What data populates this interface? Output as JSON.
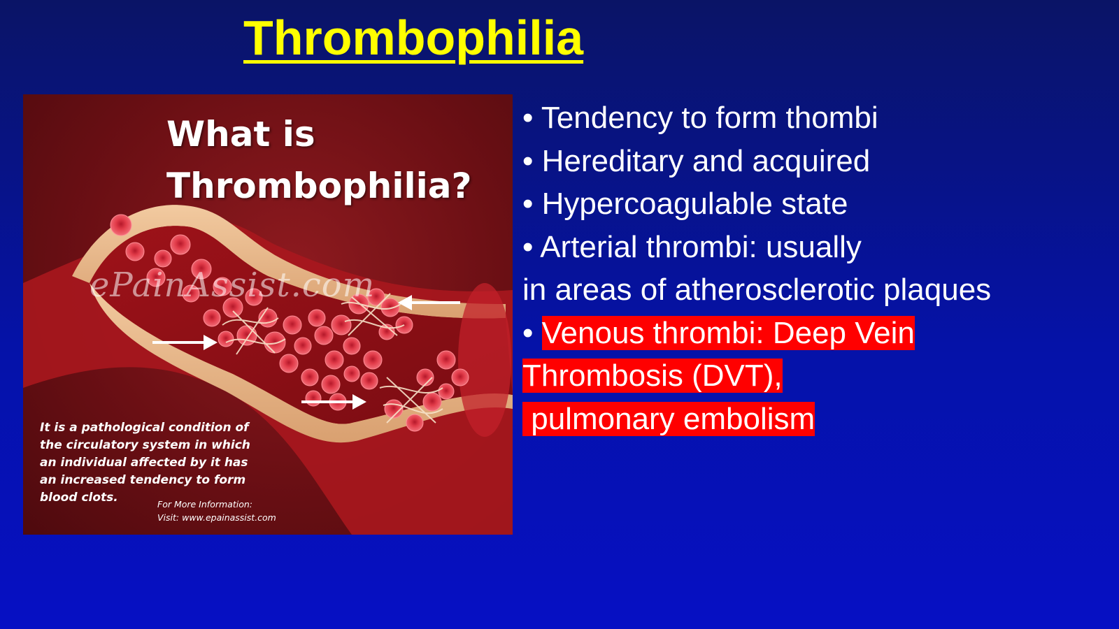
{
  "slide": {
    "title": "Thrombophilia"
  },
  "illustration": {
    "heading_line1": "What is",
    "heading_line2": "Thrombophilia?",
    "watermark": "ePainAssist.com",
    "caption_lines": [
      "It is a pathological condition of",
      "the circulatory system in which",
      "an individual affected by it has",
      "an increased tendency to form",
      "blood clots."
    ],
    "info_line1": "For More Information:",
    "info_line2": "Visit: www.epainassist.com",
    "colors": {
      "background": "#6b0f14",
      "vessel_wall": "#e8b88a",
      "blood_cell": "#e8424e"
    }
  },
  "bullets": {
    "items": [
      "• Tendency to form thombi",
      "• Hereditary and acquired",
      "• Hypercoagulable state",
      "• Arterial thrombi: usually",
      "in areas of atherosclerotic plaques"
    ],
    "highlight_prefix": "• ",
    "highlight_lines": [
      "Venous thrombi: Deep Vein",
      "Thrombosis (DVT),",
      " pulmonary embolism"
    ],
    "highlight_color": "#ff0000"
  }
}
